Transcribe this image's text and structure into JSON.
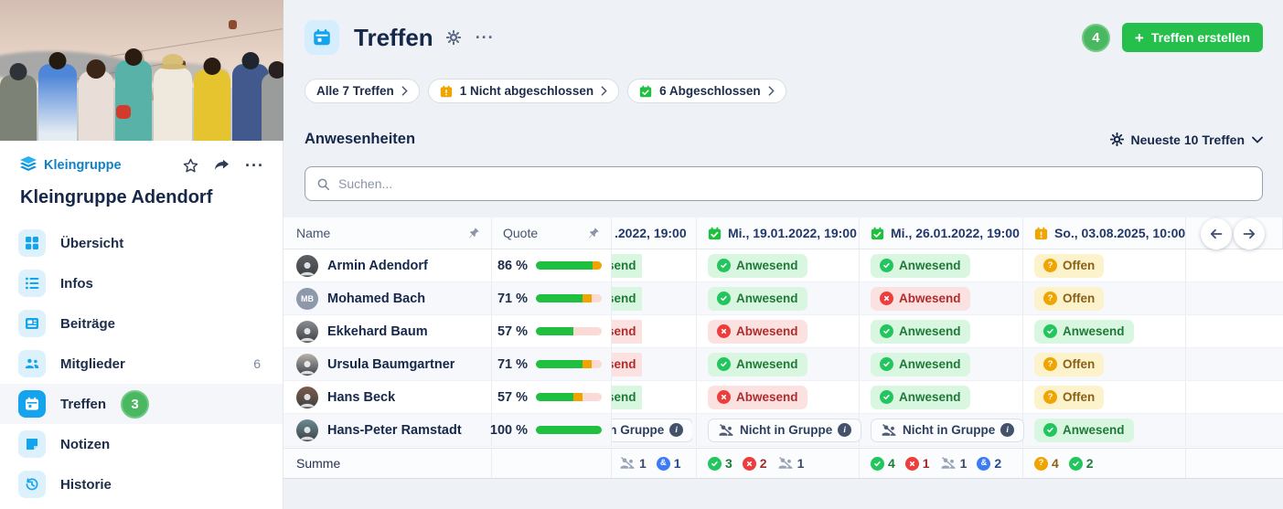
{
  "sidebar": {
    "group_type": "Kleingruppe",
    "group_name": "Kleingruppe Adendorf",
    "items": [
      {
        "label": "Übersicht"
      },
      {
        "label": "Infos"
      },
      {
        "label": "Beiträge"
      },
      {
        "label": "Mitglieder",
        "count": "6"
      },
      {
        "label": "Treffen",
        "annotation": "3"
      },
      {
        "label": "Notizen"
      },
      {
        "label": "Historie"
      }
    ]
  },
  "header": {
    "title": "Treffen",
    "annotation": "4",
    "create_button_label": "Treffen erstellen",
    "filters": [
      {
        "label": "Alle 7 Treffen"
      },
      {
        "label": "1 Nicht abgeschlossen"
      },
      {
        "label": "6 Abgeschlossen"
      }
    ]
  },
  "attendance": {
    "section_title": "Anwesenheiten",
    "view_selector_label": "Neueste 10 Treffen",
    "search_placeholder": "Suchen...",
    "columns": {
      "name": "Name",
      "quote": "Quote",
      "clipped_date": ".2022, 19:00",
      "dates": [
        {
          "label": "Mi., 19.01.2022, 19:00",
          "state": "done"
        },
        {
          "label": "Mi., 26.01.2022, 19:00",
          "state": "done"
        },
        {
          "label": "So., 03.08.2025, 10:00",
          "state": "pending"
        }
      ]
    },
    "rows": [
      {
        "name": "Armin Adendorf",
        "quote": "86 %",
        "bar": {
          "present": 86,
          "open": 14,
          "absent": 0
        },
        "avatar": {
          "type": "photo",
          "color": "#5d6166"
        },
        "clipped": {
          "type": "present",
          "label": "Anwesend"
        },
        "statuses": [
          {
            "type": "present",
            "label": "Anwesend"
          },
          {
            "type": "present",
            "label": "Anwesend"
          },
          {
            "type": "open",
            "label": "Offen"
          }
        ]
      },
      {
        "name": "Mohamed Bach",
        "quote": "71 %",
        "bar": {
          "present": 71,
          "open": 14,
          "absent": 15
        },
        "avatar": {
          "type": "initials",
          "initials": "MB",
          "color": "#8d99ab"
        },
        "clipped": {
          "type": "present",
          "label": "Anwesend"
        },
        "statuses": [
          {
            "type": "present",
            "label": "Anwesend"
          },
          {
            "type": "absent",
            "label": "Abwesend"
          },
          {
            "type": "open",
            "label": "Offen"
          }
        ]
      },
      {
        "name": "Ekkehard Baum",
        "quote": "57 %",
        "bar": {
          "present": 57,
          "open": 0,
          "absent": 43
        },
        "avatar": {
          "type": "photo",
          "color": "#8a8d90"
        },
        "clipped": {
          "type": "absent",
          "label": "Abwesend"
        },
        "statuses": [
          {
            "type": "absent",
            "label": "Abwesend"
          },
          {
            "type": "present",
            "label": "Anwesend"
          },
          {
            "type": "present",
            "label": "Anwesend"
          }
        ]
      },
      {
        "name": "Ursula Baumgartner",
        "quote": "71 %",
        "bar": {
          "present": 71,
          "open": 14,
          "absent": 15
        },
        "avatar": {
          "type": "photo",
          "color": "#b9b2ad"
        },
        "clipped": {
          "type": "absent",
          "label": "Abwesend"
        },
        "statuses": [
          {
            "type": "present",
            "label": "Anwesend"
          },
          {
            "type": "present",
            "label": "Anwesend"
          },
          {
            "type": "open",
            "label": "Offen"
          }
        ]
      },
      {
        "name": "Hans Beck",
        "quote": "57 %",
        "bar": {
          "present": 57,
          "open": 14,
          "absent": 29
        },
        "avatar": {
          "type": "photo",
          "color": "#7a5c49"
        },
        "clipped": {
          "type": "present",
          "label": "Anwesend"
        },
        "statuses": [
          {
            "type": "absent",
            "label": "Abwesend"
          },
          {
            "type": "present",
            "label": "Anwesend"
          },
          {
            "type": "open",
            "label": "Offen"
          }
        ]
      },
      {
        "name": "Hans-Peter Ramstadt",
        "quote": "100 %",
        "bar": {
          "present": 100,
          "open": 0,
          "absent": 0
        },
        "avatar": {
          "type": "photo",
          "color": "#6d8a92"
        },
        "clipped": {
          "type": "notingroup",
          "label": "Nicht in Gruppe"
        },
        "statuses": [
          {
            "type": "notingroup",
            "label": "Nicht in Gruppe"
          },
          {
            "type": "notingroup",
            "label": "Nicht in Gruppe"
          },
          {
            "type": "present",
            "label": "Anwesend"
          }
        ]
      }
    ],
    "summary": {
      "label": "Summe",
      "clipped": [
        {
          "icon": "people-slash",
          "value": "1"
        },
        {
          "icon": "guest",
          "value": "1"
        }
      ],
      "dates": [
        [
          {
            "icon": "present",
            "value": "3"
          },
          {
            "icon": "absent",
            "value": "2"
          },
          {
            "icon": "people-slash",
            "value": "1"
          }
        ],
        [
          {
            "icon": "present",
            "value": "4"
          },
          {
            "icon": "absent",
            "value": "1"
          },
          {
            "icon": "people-slash",
            "value": "1"
          },
          {
            "icon": "guest",
            "value": "2"
          }
        ],
        [
          {
            "icon": "open",
            "value": "4"
          },
          {
            "icon": "present",
            "value": "2"
          }
        ]
      ]
    }
  },
  "colors": {
    "accent_blue": "#14a4ee",
    "navy": "#16284a",
    "create_green": "#25bf4b",
    "annotation_green": "#4ab861",
    "present_green": "#22c55e",
    "absent_red": "#ee3d3d",
    "open_amber": "#f0a400",
    "guest_blue": "#3d7bf5",
    "page_bg": "#eef1f6"
  }
}
